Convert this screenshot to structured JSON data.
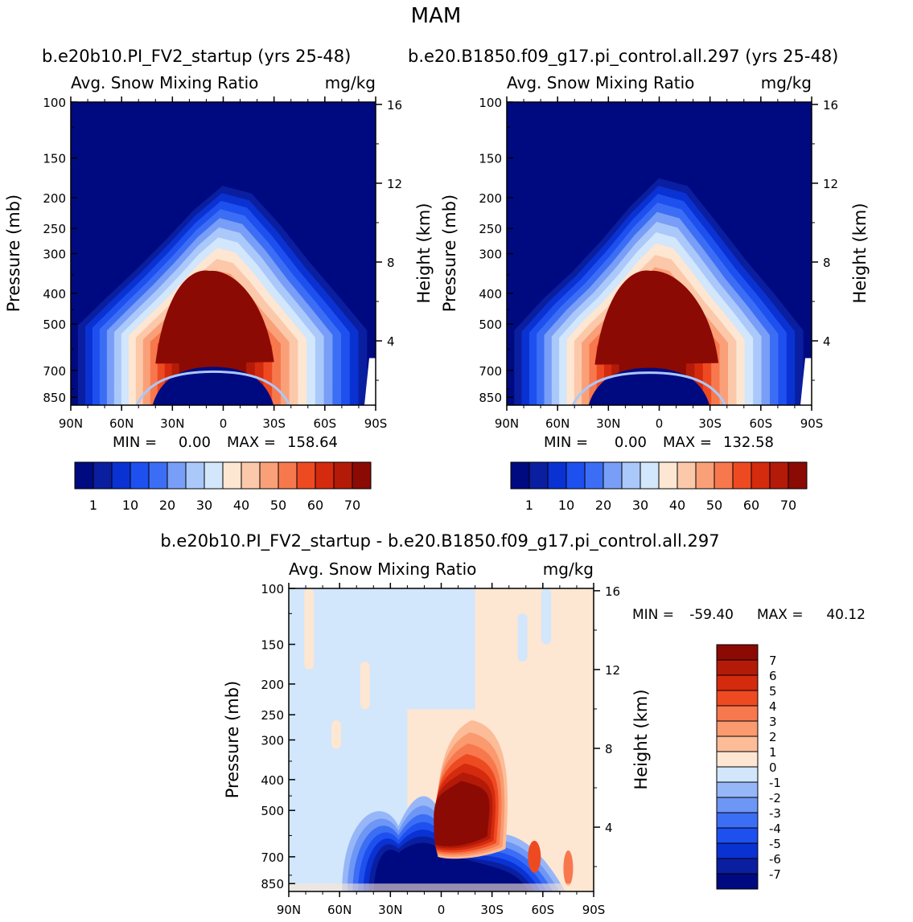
{
  "figure": {
    "season": "MAM",
    "left_case": "b.e20b10.PI_FV2_startup (yrs 25-48)",
    "right_case": "b.e20.B1850.f09_g17.pi_control.all.297 (yrs 25-48)",
    "diff_title": "b.e20b10.PI_FV2_startup - b.e20.B1850.f09_g17.pi_control.all.297"
  },
  "colors": {
    "abs_palette": [
      "#000a80",
      "#0a1ea0",
      "#0a32d2",
      "#1e50f0",
      "#3c6ef5",
      "#789ef7",
      "#aac8fa",
      "#d2e6fc",
      "#fde6d2",
      "#fcc8aa",
      "#faa078",
      "#f8784e",
      "#ee4a22",
      "#d42a0e",
      "#b41a08",
      "#8c0a04"
    ],
    "diff_palette": [
      "#000a80",
      "#0a1ea0",
      "#0a32d2",
      "#1e50f0",
      "#3c6ef5",
      "#6e96f5",
      "#96b6f8",
      "#d2e6fc",
      "#fde6d2",
      "#fcbc98",
      "#fa9a6e",
      "#f8784e",
      "#ee4a22",
      "#d42a0e",
      "#b41a08",
      "#8c0a04"
    ]
  },
  "chart_data": [
    {
      "type": "heatmap",
      "id": "left",
      "title_left": "Avg. Snow Mixing Ratio",
      "title_right": "mg/kg",
      "xlabel": "",
      "ylabel": "Pressure (mb)",
      "ylabel_right": "Height (km)",
      "x_ticks": [
        "90N",
        "60N",
        "30N",
        "0",
        "30S",
        "60S",
        "90S"
      ],
      "y_ticks": [
        100,
        150,
        200,
        250,
        300,
        400,
        500,
        700,
        850
      ],
      "y_right_ticks": [
        16,
        12,
        8,
        4
      ],
      "min_label": "MIN =",
      "min_value": "0.00",
      "max_label": "MAX =",
      "max_value": "158.64",
      "colorbar_labels": [
        "1",
        "10",
        "20",
        "30",
        "40",
        "50",
        "60",
        "70"
      ],
      "fields": {
        "snow_onset_pressure_mb": [
          500,
          405,
          330,
          265,
          210,
          175,
          185,
          235,
          310,
          400,
          520
        ],
        "max_snow_pressure_mb": 620,
        "max_snow_latitude": 8,
        "melting_level_pressure_mb": 690,
        "red_core_latitude_range": [
          -30,
          40
        ]
      }
    },
    {
      "type": "heatmap",
      "id": "right",
      "title_left": "Avg. Snow Mixing Ratio",
      "title_right": "mg/kg",
      "xlabel": "",
      "ylabel": "Pressure (mb)",
      "ylabel_right": "Height (km)",
      "x_ticks": [
        "90N",
        "60N",
        "30N",
        "0",
        "30S",
        "60S",
        "90S"
      ],
      "y_ticks": [
        100,
        150,
        200,
        250,
        300,
        400,
        500,
        700,
        850
      ],
      "y_right_ticks": [
        16,
        12,
        8,
        4
      ],
      "min_label": "MIN =",
      "min_value": "0.00",
      "max_label": "MAX =",
      "max_value": "132.58",
      "colorbar_labels": [
        "1",
        "10",
        "20",
        "30",
        "40",
        "50",
        "60",
        "70"
      ],
      "fields": {
        "snow_onset_pressure_mb": [
          520,
          410,
          335,
          265,
          205,
          165,
          175,
          230,
          305,
          395,
          520
        ],
        "max_snow_pressure_mb": 625,
        "max_snow_latitude": 5,
        "melting_level_pressure_mb": 695,
        "red_core_latitude_range": [
          -35,
          38
        ]
      }
    },
    {
      "type": "heatmap",
      "id": "diff",
      "title_left": "Avg. Snow Mixing Ratio",
      "title_right": "mg/kg",
      "xlabel": "",
      "ylabel": "Pressure (mb)",
      "ylabel_right": "Height (km)",
      "x_ticks": [
        "90N",
        "60N",
        "30N",
        "0",
        "30S",
        "60S",
        "90S"
      ],
      "y_ticks": [
        100,
        150,
        200,
        250,
        300,
        400,
        500,
        700,
        850
      ],
      "y_right_ticks": [
        16,
        12,
        8,
        4
      ],
      "min_label": "MIN =",
      "min_value": "-59.40",
      "max_label": "MAX =",
      "max_value": "40.12",
      "colorbar_labels": [
        "7",
        "6",
        "5",
        "4",
        "3",
        "2",
        "1",
        "0",
        "-1",
        "-2",
        "-3",
        "-4",
        "-5",
        "-6",
        "-7"
      ],
      "fields": {
        "positive_core_latitude_range": [
          -20,
          0
        ],
        "positive_core_pressure_range_mb": [
          290,
          680
        ],
        "negative_core_latitude_range": [
          5,
          35
        ],
        "negative_core_pressure_range_mb": [
          400,
          850
        ]
      }
    }
  ]
}
